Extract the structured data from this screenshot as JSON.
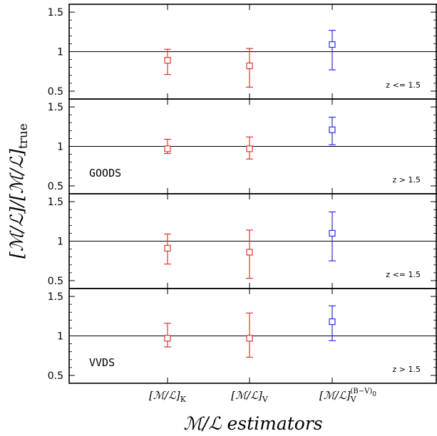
{
  "chart_data": {
    "type": "scatter",
    "error_bars": true,
    "xlabel": "ℳ/ℒ estimators",
    "ylabel": "[ℳ/ℒ]/[ℳ/ℒ]true",
    "categories": [
      "[ℳ/ℒ]K",
      "[ℳ/ℒ]V",
      "[ℳ/ℒ]V(B−V)0"
    ],
    "colors": [
      "#e8322f",
      "#e8322f",
      "#2d2de6"
    ],
    "ylim": [
      0.4,
      1.6
    ],
    "yticks": [
      "0.5",
      "1",
      "1.5"
    ],
    "reference_line": 1,
    "panels": [
      {
        "survey": "",
        "z_label": "z <= 1.5",
        "points": [
          {
            "y": 0.89,
            "low": 0.71,
            "high": 1.03
          },
          {
            "y": 0.82,
            "low": 0.55,
            "high": 1.04
          },
          {
            "y": 1.09,
            "low": 0.77,
            "high": 1.27
          }
        ]
      },
      {
        "survey": "GOODS",
        "z_label": "z > 1.5",
        "points": [
          {
            "y": 0.97,
            "low": 0.91,
            "high": 1.09
          },
          {
            "y": 0.97,
            "low": 0.84,
            "high": 1.12
          },
          {
            "y": 1.21,
            "low": 1.02,
            "high": 1.37
          }
        ]
      },
      {
        "survey": "",
        "z_label": "z <= 1.5",
        "points": [
          {
            "y": 0.91,
            "low": 0.71,
            "high": 1.09
          },
          {
            "y": 0.86,
            "low": 0.53,
            "high": 1.14
          },
          {
            "y": 1.1,
            "low": 0.75,
            "high": 1.37
          }
        ]
      },
      {
        "survey": "VVDS",
        "z_label": "z > 1.5",
        "points": [
          {
            "y": 0.97,
            "low": 0.86,
            "high": 1.16
          },
          {
            "y": 0.97,
            "low": 0.73,
            "high": 1.29
          },
          {
            "y": 1.18,
            "low": 0.94,
            "high": 1.38
          }
        ]
      }
    ]
  }
}
